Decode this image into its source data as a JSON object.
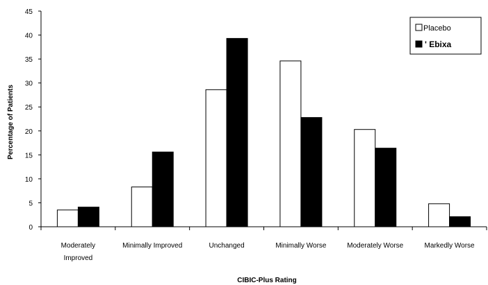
{
  "chart_data": {
    "type": "bar",
    "title": "",
    "xlabel": "CIBIC-Plus Rating",
    "ylabel": "Percentage of Patients",
    "ylim": [
      0,
      45
    ],
    "yticks": [
      0,
      5,
      10,
      15,
      20,
      25,
      30,
      35,
      40,
      45
    ],
    "categories": [
      [
        "Moderately",
        "Improved"
      ],
      [
        "Minimally Improved"
      ],
      [
        "Unchanged"
      ],
      [
        "Minimally Worse"
      ],
      [
        "Moderately Worse"
      ],
      [
        "Markedly Worse"
      ]
    ],
    "series": [
      {
        "name": "Placebo",
        "color": "#ffffff",
        "values": [
          3.5,
          8.3,
          28.6,
          34.6,
          20.3,
          4.8
        ]
      },
      {
        "name": "' Ebixa",
        "color": "#000000",
        "values": [
          4.1,
          15.6,
          39.3,
          22.8,
          16.4,
          2.1
        ]
      }
    ],
    "legend_position": "top-right",
    "grid": false
  }
}
